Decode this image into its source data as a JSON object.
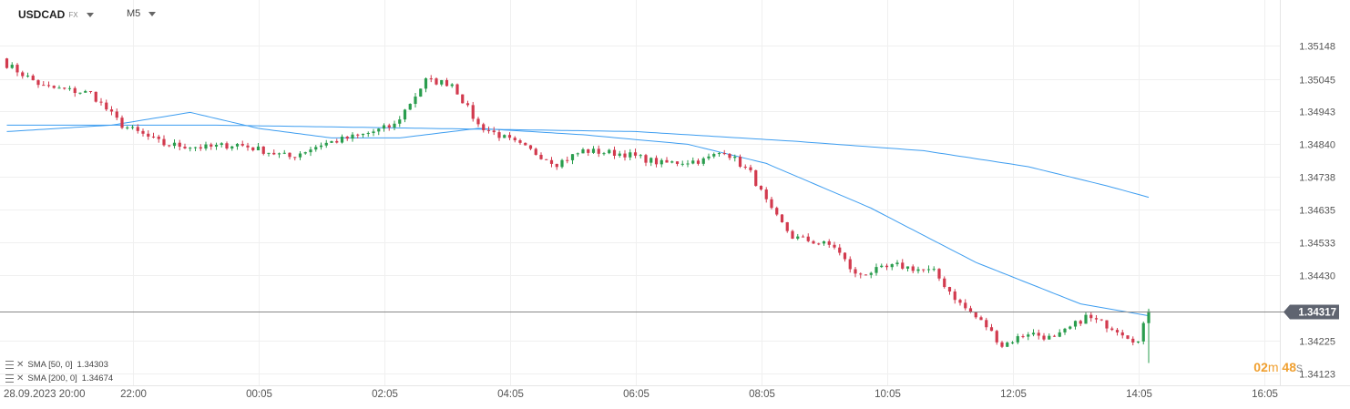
{
  "header": {
    "symbol": "USDCAD",
    "symbol_type": "FX",
    "timeframe": "M5"
  },
  "indicators": [
    {
      "label": "SMA [50, 0]",
      "value": "1.34303",
      "color": "#3d9df0"
    },
    {
      "label": "SMA [200, 0]",
      "value": "1.34674",
      "color": "#3d9df0"
    }
  ],
  "timer": {
    "minutes": "02",
    "minutes_unit": "m",
    "seconds": "48",
    "seconds_unit": "s"
  },
  "chart_data": {
    "type": "candlestick",
    "symbol": "USDCAD",
    "timeframe": "M5",
    "current_price": 1.34317,
    "current_price_label": "1.34317",
    "ylim": [
      1.34085,
      1.35235
    ],
    "y_ticks": [
      "1.35148",
      "1.35045",
      "1.34943",
      "1.34840",
      "1.34738",
      "1.34635",
      "1.34533",
      "1.34430",
      "1.34225",
      "1.34123"
    ],
    "x_ticks": [
      "28.09.2023  20:00",
      "22:00",
      "00:05",
      "02:05",
      "04:05",
      "06:05",
      "08:05",
      "10:05",
      "12:05",
      "14:05",
      "16:05"
    ],
    "x_tick_bar_index": [
      0,
      24,
      48,
      72,
      96,
      120,
      144,
      168,
      192,
      216,
      240
    ],
    "candle_count": 219,
    "colors": {
      "up": "#2a9d4e",
      "down": "#d23a4e",
      "sma": "#3d9df0",
      "price_line": "#888888",
      "price_tag": "#5f6470"
    },
    "ohlc_anchors": [
      {
        "bar": 0,
        "close": 1.3509
      },
      {
        "bar": 7,
        "close": 1.3502
      },
      {
        "bar": 16,
        "close": 1.35
      },
      {
        "bar": 22,
        "close": 1.349
      },
      {
        "bar": 30,
        "close": 1.3484
      },
      {
        "bar": 38,
        "close": 1.3483
      },
      {
        "bar": 44,
        "close": 1.3484
      },
      {
        "bar": 54,
        "close": 1.348
      },
      {
        "bar": 60,
        "close": 1.3484
      },
      {
        "bar": 68,
        "close": 1.3487
      },
      {
        "bar": 74,
        "close": 1.349
      },
      {
        "bar": 80,
        "close": 1.3504
      },
      {
        "bar": 85,
        "close": 1.3503
      },
      {
        "bar": 90,
        "close": 1.349
      },
      {
        "bar": 95,
        "close": 1.3486
      },
      {
        "bar": 100,
        "close": 1.3482
      },
      {
        "bar": 105,
        "close": 1.3478
      },
      {
        "bar": 110,
        "close": 1.3482
      },
      {
        "bar": 118,
        "close": 1.3481
      },
      {
        "bar": 125,
        "close": 1.3478
      },
      {
        "bar": 133,
        "close": 1.3479
      },
      {
        "bar": 137,
        "close": 1.3482
      },
      {
        "bar": 142,
        "close": 1.3475
      },
      {
        "bar": 146,
        "close": 1.3463
      },
      {
        "bar": 150,
        "close": 1.3455
      },
      {
        "bar": 158,
        "close": 1.3452
      },
      {
        "bar": 162,
        "close": 1.3443
      },
      {
        "bar": 170,
        "close": 1.3446
      },
      {
        "bar": 177,
        "close": 1.3444
      },
      {
        "bar": 182,
        "close": 1.3434
      },
      {
        "bar": 187,
        "close": 1.3427
      },
      {
        "bar": 190,
        "close": 1.3421
      },
      {
        "bar": 195,
        "close": 1.3425
      },
      {
        "bar": 200,
        "close": 1.3423
      },
      {
        "bar": 206,
        "close": 1.343
      },
      {
        "bar": 212,
        "close": 1.3426
      },
      {
        "bar": 216,
        "close": 1.3422
      },
      {
        "bar": 218,
        "close": 1.3432
      }
    ],
    "sma50": [
      {
        "bar": 0,
        "value": 1.3488
      },
      {
        "bar": 20,
        "value": 1.349
      },
      {
        "bar": 35,
        "value": 1.3494
      },
      {
        "bar": 48,
        "value": 1.3489
      },
      {
        "bar": 62,
        "value": 1.3486
      },
      {
        "bar": 75,
        "value": 1.3486
      },
      {
        "bar": 90,
        "value": 1.3489
      },
      {
        "bar": 110,
        "value": 1.3487
      },
      {
        "bar": 130,
        "value": 1.3484
      },
      {
        "bar": 145,
        "value": 1.3478
      },
      {
        "bar": 165,
        "value": 1.3464
      },
      {
        "bar": 185,
        "value": 1.3447
      },
      {
        "bar": 205,
        "value": 1.3434
      },
      {
        "bar": 218,
        "value": 1.34303
      }
    ],
    "sma200": [
      {
        "bar": 0,
        "value": 1.349
      },
      {
        "bar": 40,
        "value": 1.349
      },
      {
        "bar": 80,
        "value": 1.3489
      },
      {
        "bar": 120,
        "value": 1.3488
      },
      {
        "bar": 150,
        "value": 1.3485
      },
      {
        "bar": 175,
        "value": 1.3482
      },
      {
        "bar": 195,
        "value": 1.3477
      },
      {
        "bar": 210,
        "value": 1.3471
      },
      {
        "bar": 218,
        "value": 1.34674
      }
    ]
  }
}
